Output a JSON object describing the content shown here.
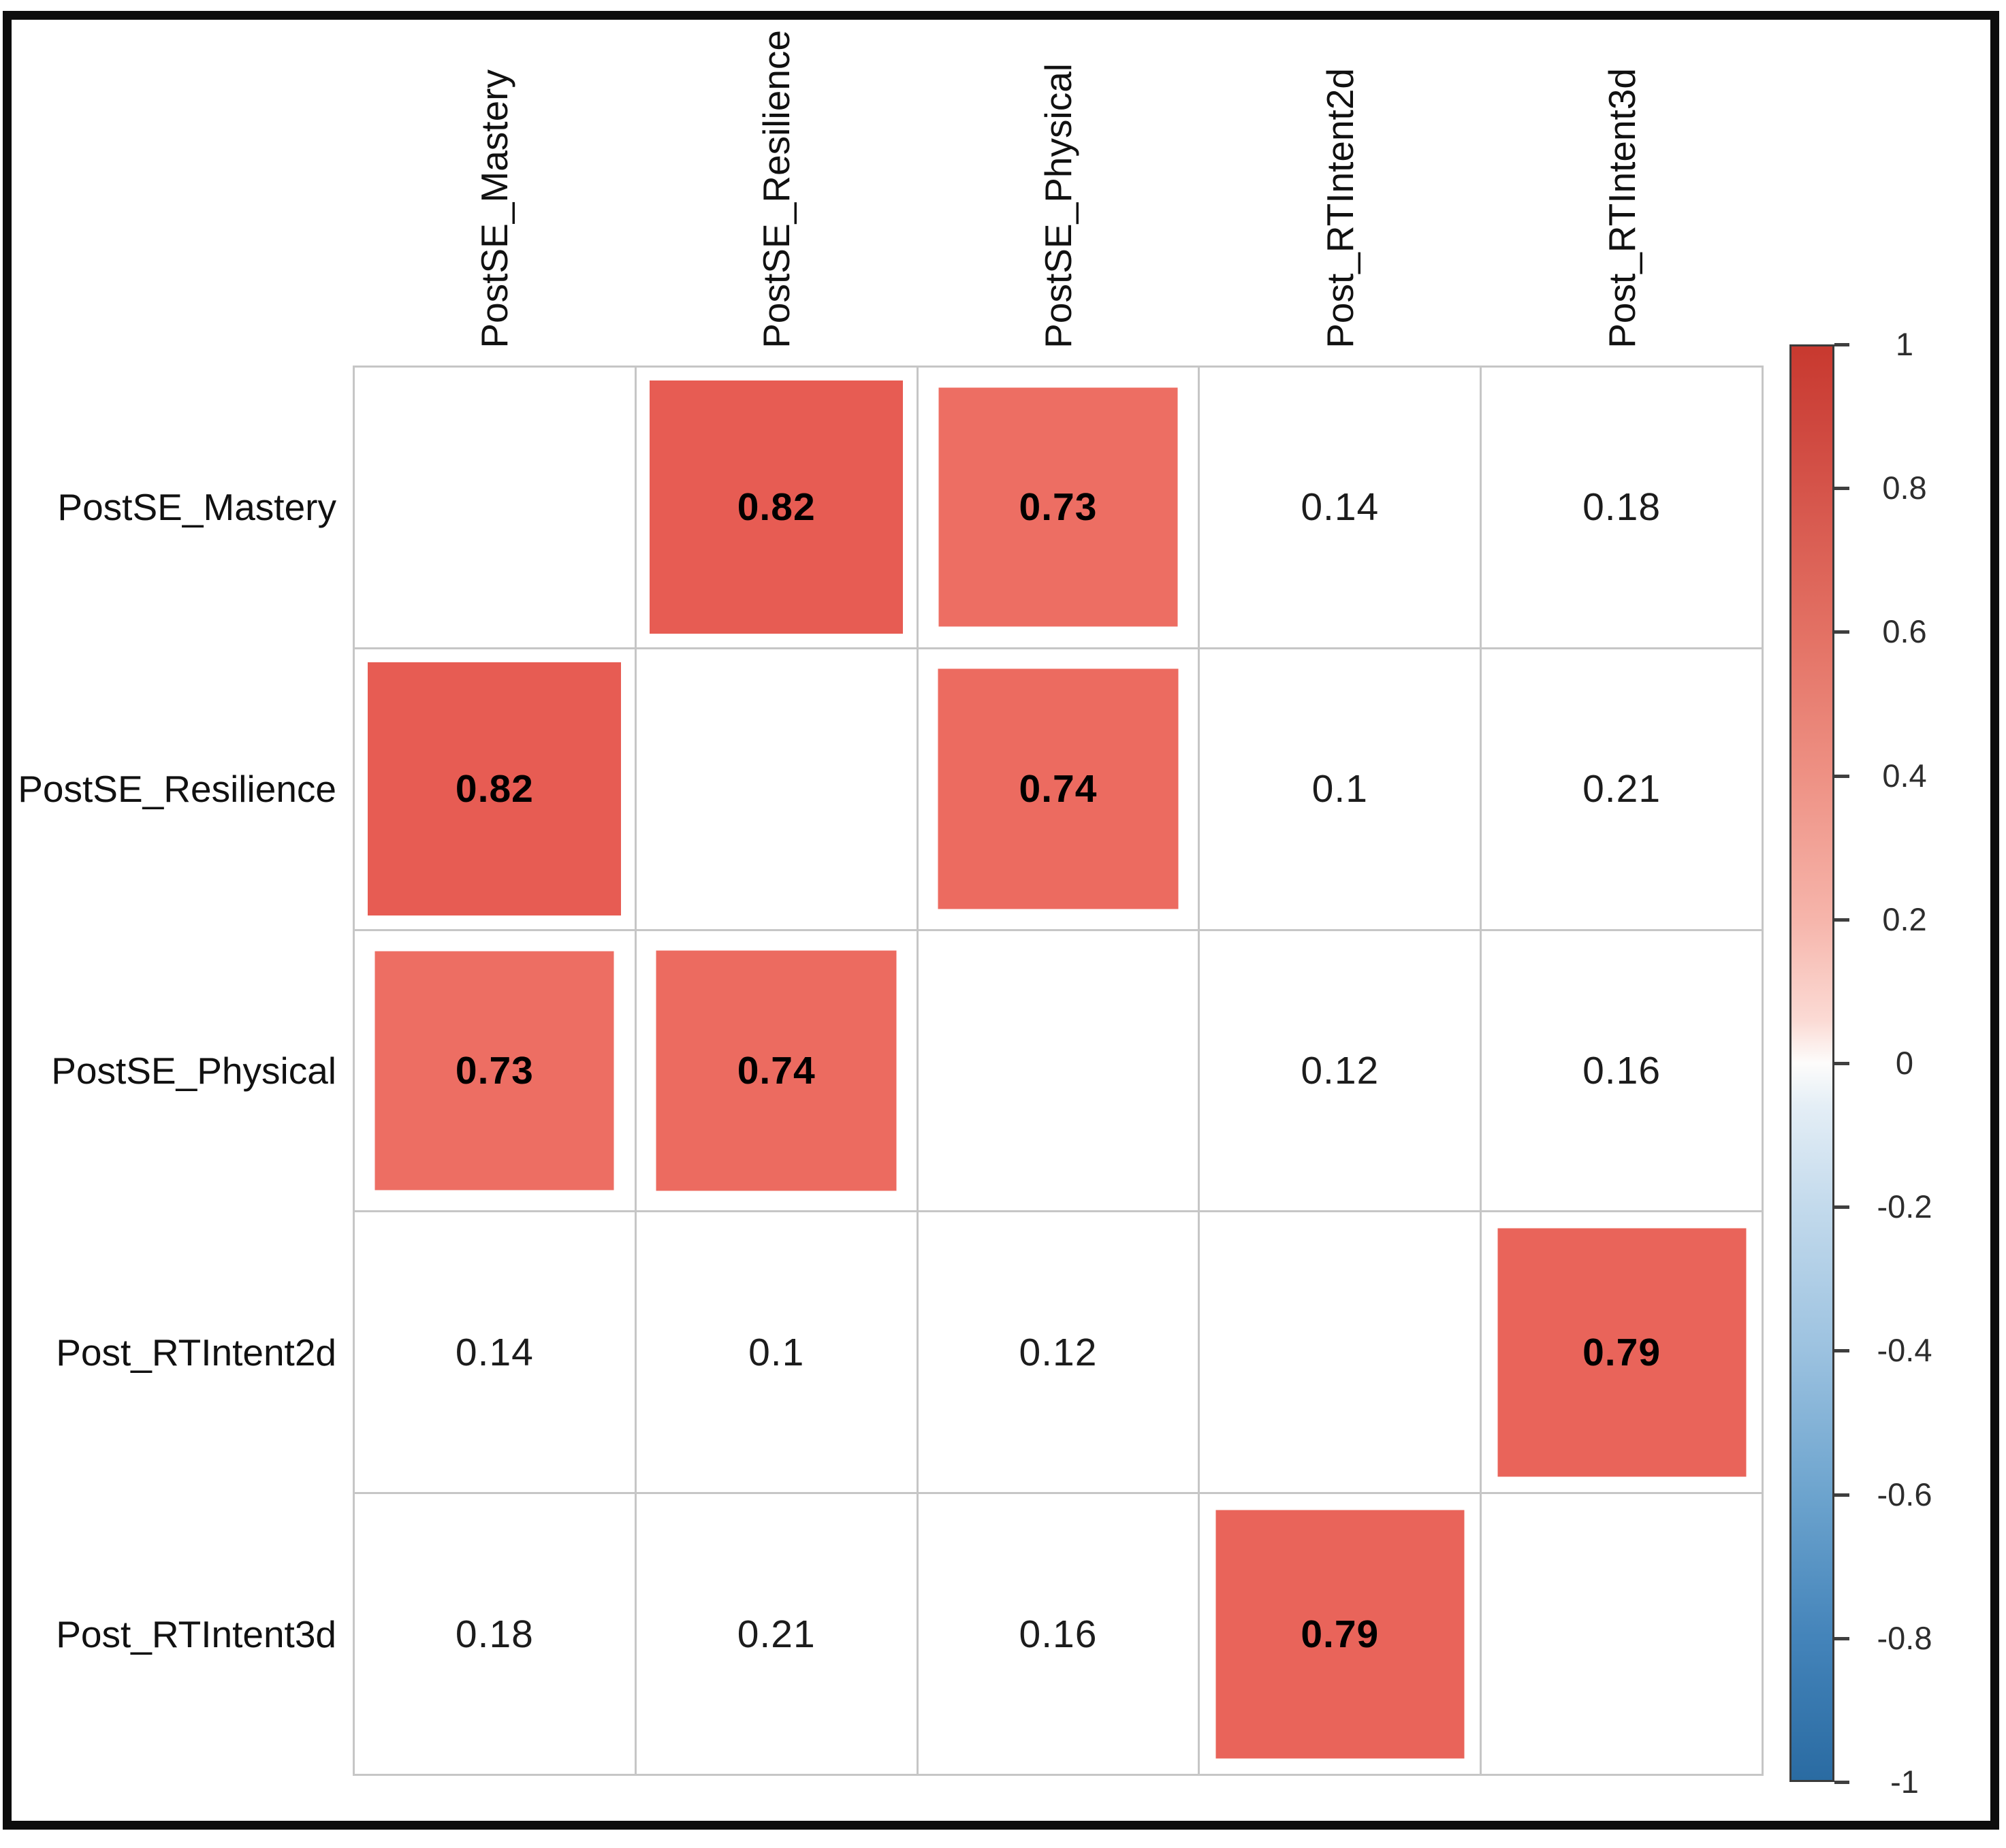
{
  "figure": {
    "background": "#ffffff",
    "frame_color": "#0d0d0d",
    "grid_line_color": "#c6c6c6",
    "value_text_color": "#1c1c1c"
  },
  "chart_data": {
    "type": "heatmap",
    "subtype": "correlation_matrix",
    "method": "square",
    "variables": [
      "PostSE_Mastery",
      "PostSE_Resilience",
      "PostSE_Physical",
      "Post_RTIntent2d",
      "Post_RTIntent3d"
    ],
    "matrix": [
      [
        null,
        0.82,
        0.73,
        0.14,
        0.18
      ],
      [
        0.82,
        null,
        0.74,
        0.1,
        0.21
      ],
      [
        0.73,
        0.74,
        null,
        0.12,
        0.16
      ],
      [
        0.14,
        0.1,
        0.12,
        null,
        0.79
      ],
      [
        0.18,
        0.21,
        0.16,
        0.79,
        null
      ]
    ],
    "cells": [
      {
        "row": 0,
        "col": 1,
        "display": "0.82",
        "value": 0.82,
        "square": true,
        "color": "#E75C53"
      },
      {
        "row": 0,
        "col": 2,
        "display": "0.73",
        "value": 0.73,
        "square": true,
        "color": "#ED6E63"
      },
      {
        "row": 0,
        "col": 3,
        "display": "0.14",
        "value": 0.14,
        "square": false
      },
      {
        "row": 0,
        "col": 4,
        "display": "0.18",
        "value": 0.18,
        "square": false
      },
      {
        "row": 1,
        "col": 0,
        "display": "0.82",
        "value": 0.82,
        "square": true,
        "color": "#E75C53"
      },
      {
        "row": 1,
        "col": 2,
        "display": "0.74",
        "value": 0.74,
        "square": true,
        "color": "#EC6B60"
      },
      {
        "row": 1,
        "col": 3,
        "display": "0.1",
        "value": 0.1,
        "square": false
      },
      {
        "row": 1,
        "col": 4,
        "display": "0.21",
        "value": 0.21,
        "square": false
      },
      {
        "row": 2,
        "col": 0,
        "display": "0.73",
        "value": 0.73,
        "square": true,
        "color": "#ED6E63"
      },
      {
        "row": 2,
        "col": 1,
        "display": "0.74",
        "value": 0.74,
        "square": true,
        "color": "#EC6B60"
      },
      {
        "row": 2,
        "col": 3,
        "display": "0.12",
        "value": 0.12,
        "square": false
      },
      {
        "row": 2,
        "col": 4,
        "display": "0.16",
        "value": 0.16,
        "square": false
      },
      {
        "row": 3,
        "col": 0,
        "display": "0.14",
        "value": 0.14,
        "square": false
      },
      {
        "row": 3,
        "col": 1,
        "display": "0.1",
        "value": 0.1,
        "square": false
      },
      {
        "row": 3,
        "col": 2,
        "display": "0.12",
        "value": 0.12,
        "square": false
      },
      {
        "row": 3,
        "col": 4,
        "display": "0.79",
        "value": 0.79,
        "square": true,
        "color": "#E9645A"
      },
      {
        "row": 4,
        "col": 0,
        "display": "0.18",
        "value": 0.18,
        "square": false
      },
      {
        "row": 4,
        "col": 1,
        "display": "0.21",
        "value": 0.21,
        "square": false
      },
      {
        "row": 4,
        "col": 2,
        "display": "0.16",
        "value": 0.16,
        "square": false
      },
      {
        "row": 4,
        "col": 3,
        "display": "0.79",
        "value": 0.79,
        "square": true,
        "color": "#E9645A"
      }
    ],
    "colorbar": {
      "min": -1,
      "max": 1,
      "tick_labels": [
        "1",
        "0.8",
        "0.6",
        "0.4",
        "0.2",
        "0",
        "-0.2",
        "-0.4",
        "-0.6",
        "-0.8",
        "-1"
      ],
      "gradient_stops": [
        {
          "pos": 0,
          "color": "#C8392F"
        },
        {
          "pos": 5,
          "color": "#CE463D"
        },
        {
          "pos": 10,
          "color": "#D5544A"
        },
        {
          "pos": 20,
          "color": "#E37164"
        },
        {
          "pos": 30,
          "color": "#EE9184"
        },
        {
          "pos": 40,
          "color": "#F6B5AB"
        },
        {
          "pos": 47,
          "color": "#FBDAD4"
        },
        {
          "pos": 50,
          "color": "#FDFCFB"
        },
        {
          "pos": 53,
          "color": "#E4EEF6"
        },
        {
          "pos": 60,
          "color": "#C3DAEC"
        },
        {
          "pos": 70,
          "color": "#9CC2E0"
        },
        {
          "pos": 80,
          "color": "#6DA4CE"
        },
        {
          "pos": 90,
          "color": "#4484BA"
        },
        {
          "pos": 100,
          "color": "#2A6BA2"
        }
      ]
    },
    "legend_position": "right",
    "grid": true
  }
}
